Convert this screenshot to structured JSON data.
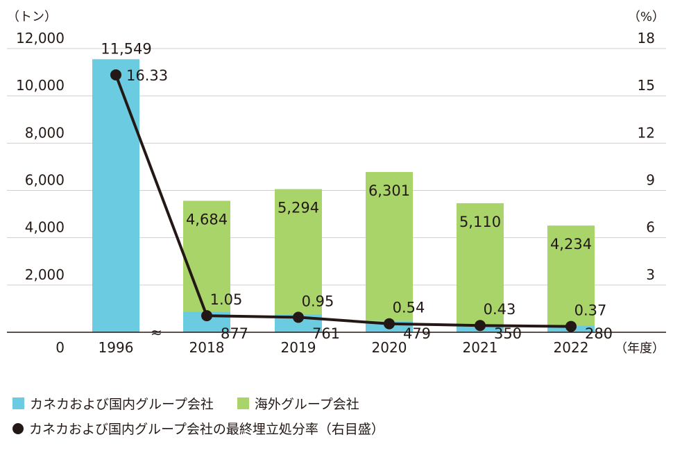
{
  "chart_data": {
    "type": "bar",
    "categories": [
      "1996",
      "2018",
      "2019",
      "2020",
      "2021",
      "2022"
    ],
    "series": [
      {
        "name": "カネカおよび国内グループ会社",
        "kind": "bar",
        "color": "#6bcbe0",
        "values": [
          11549,
          877,
          761,
          479,
          350,
          280
        ],
        "labels": [
          "11,549",
          "877",
          "761",
          "479",
          "350",
          "280"
        ]
      },
      {
        "name": "海外グループ会社",
        "kind": "bar",
        "color": "#a9d46a",
        "values": [
          null,
          4684,
          5294,
          6301,
          5110,
          4234
        ],
        "labels": [
          "",
          "4,684",
          "5,294",
          "6,301",
          "5,110",
          "4,234"
        ]
      },
      {
        "name": "カネカおよび国内グループ会社の最終埋立処分率（右目盛）",
        "kind": "line",
        "axis": "right",
        "color": "#231815",
        "values": [
          16.33,
          1.05,
          0.95,
          0.54,
          0.43,
          0.37
        ],
        "labels": [
          "16.33",
          "1.05",
          "0.95",
          "0.54",
          "0.43",
          "0.37"
        ]
      }
    ],
    "y_left": {
      "unit": "（トン）",
      "ylim": [
        0,
        12000
      ],
      "ticks": [
        "0",
        "2,000",
        "4,000",
        "6,000",
        "8,000",
        "10,000",
        "12,000"
      ]
    },
    "y_right": {
      "unit": "（%）",
      "ylim": [
        0,
        18
      ],
      "ticks": [
        "3",
        "6",
        "9",
        "12",
        "15",
        "18"
      ]
    },
    "x_unit": "（年度）",
    "axis_break": "≈",
    "grid": true
  },
  "legend": {
    "domestic": "カネカおよび国内グループ会社",
    "overseas": "海外グループ会社",
    "rate": "カネカおよび国内グループ会社の最終埋立処分率（右目盛）"
  }
}
